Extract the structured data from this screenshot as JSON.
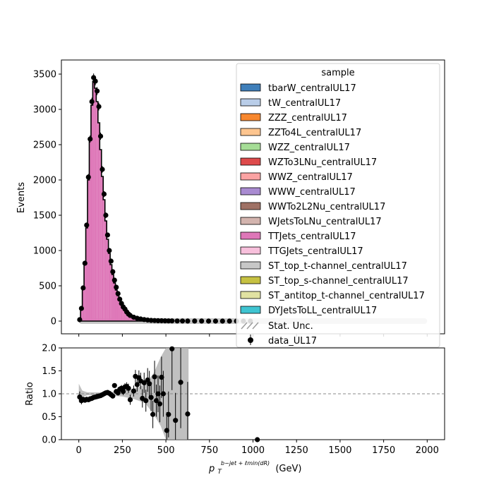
{
  "chart_data": [
    {
      "type": "bar",
      "panel": "main",
      "ylabel": "Events",
      "xlim": [
        -100,
        2100
      ],
      "ylim": [
        -180,
        3700
      ],
      "xticks": [
        0,
        250,
        500,
        750,
        1000,
        1250,
        1500,
        1750,
        2000
      ],
      "yticks": [
        0,
        500,
        1000,
        1500,
        2000,
        2500,
        3000,
        3500
      ],
      "stack_color": "#de77b8",
      "data_color": "#000000",
      "unc_color": "#c8c8c8",
      "bin_width": 10,
      "mc_counts": [
        20,
        180,
        480,
        820,
        1320,
        2000,
        2560,
        3060,
        3400,
        3300,
        3110,
        2810,
        2430,
        2050,
        1720,
        1420,
        1160,
        960,
        800,
        660,
        540,
        440,
        360,
        290,
        235,
        190,
        155,
        125,
        100,
        82,
        66,
        54,
        44,
        36,
        29,
        24,
        19,
        15,
        12,
        10,
        8,
        6,
        5,
        4,
        3
      ],
      "data_points": [
        {
          "x": 5,
          "y": 20
        },
        {
          "x": 15,
          "y": 180
        },
        {
          "x": 25,
          "y": 470
        },
        {
          "x": 35,
          "y": 820
        },
        {
          "x": 45,
          "y": 1360
        },
        {
          "x": 55,
          "y": 2040
        },
        {
          "x": 65,
          "y": 2580
        },
        {
          "x": 75,
          "y": 3110
        },
        {
          "x": 85,
          "y": 3450
        },
        {
          "x": 95,
          "y": 3400
        },
        {
          "x": 105,
          "y": 3260
        },
        {
          "x": 115,
          "y": 3040
        },
        {
          "x": 125,
          "y": 2620
        },
        {
          "x": 135,
          "y": 2150
        },
        {
          "x": 145,
          "y": 1800
        },
        {
          "x": 155,
          "y": 1500
        },
        {
          "x": 165,
          "y": 1220
        },
        {
          "x": 175,
          "y": 1000
        },
        {
          "x": 185,
          "y": 850
        },
        {
          "x": 195,
          "y": 700
        },
        {
          "x": 205,
          "y": 580
        },
        {
          "x": 215,
          "y": 480
        },
        {
          "x": 225,
          "y": 390
        },
        {
          "x": 235,
          "y": 310
        },
        {
          "x": 245,
          "y": 250
        },
        {
          "x": 255,
          "y": 200
        },
        {
          "x": 265,
          "y": 170
        },
        {
          "x": 275,
          "y": 130
        },
        {
          "x": 285,
          "y": 100
        },
        {
          "x": 295,
          "y": 80
        },
        {
          "x": 315,
          "y": 55
        },
        {
          "x": 335,
          "y": 40
        },
        {
          "x": 355,
          "y": 30
        },
        {
          "x": 375,
          "y": 22
        },
        {
          "x": 395,
          "y": 15
        },
        {
          "x": 415,
          "y": 10
        },
        {
          "x": 435,
          "y": 8
        },
        {
          "x": 455,
          "y": 6
        },
        {
          "x": 475,
          "y": 5
        },
        {
          "x": 495,
          "y": 4
        },
        {
          "x": 515,
          "y": 3
        },
        {
          "x": 535,
          "y": 3
        },
        {
          "x": 565,
          "y": 2
        },
        {
          "x": 595,
          "y": 2
        },
        {
          "x": 625,
          "y": 1
        },
        {
          "x": 665,
          "y": 1
        },
        {
          "x": 705,
          "y": 1
        },
        {
          "x": 745,
          "y": 0
        },
        {
          "x": 785,
          "y": 0
        },
        {
          "x": 825,
          "y": 0
        },
        {
          "x": 865,
          "y": 0
        },
        {
          "x": 905,
          "y": 0
        },
        {
          "x": 945,
          "y": 0
        },
        {
          "x": 985,
          "y": 0
        }
      ],
      "legend": {
        "title": "sample",
        "placement": "upper-right",
        "entries": [
          {
            "label": "tbarW_centralUL17",
            "color": "#3f7fba"
          },
          {
            "label": "tW_centralUL17",
            "color": "#b9cde8"
          },
          {
            "label": "ZZZ_centralUL17",
            "color": "#f7872e"
          },
          {
            "label": "ZZTo4L_centralUL17",
            "color": "#fdc58f"
          },
          {
            "label": "WZZ_centralUL17",
            "color": "#a5dd96"
          },
          {
            "label": "WZTo3LNu_centralUL17",
            "color": "#de4a4b"
          },
          {
            "label": "WWZ_centralUL17",
            "color": "#fba3a3"
          },
          {
            "label": "WWW_centralUL17",
            "color": "#a98bd1"
          },
          {
            "label": "WWTo2L2Nu_centralUL17",
            "color": "#9f7165"
          },
          {
            "label": "WJetsToLNu_centralUL17",
            "color": "#d3b4ae"
          },
          {
            "label": "TTJets_centralUL17",
            "color": "#de77b8"
          },
          {
            "label": "TTGJets_centralUL17",
            "color": "#f8c0dc"
          },
          {
            "label": "ST_top_t-channel_centralUL17",
            "color": "#c7c7c7"
          },
          {
            "label": "ST_top_s-channel_centralUL17",
            "color": "#c6c142"
          },
          {
            "label": "ST_antitop_t-channel_centralUL17",
            "color": "#e1e2a2"
          },
          {
            "label": "DYJetsToLL_centralUL17",
            "color": "#3fc4d1"
          }
        ],
        "unc_label": "Stat. Unc.",
        "data_label": "data_UL17"
      }
    },
    {
      "type": "scatter",
      "panel": "ratio",
      "ylabel": "Ratio",
      "xlabel_main": "p",
      "xlabel_sub": "T",
      "xlabel_sup": "b−jet + ℓmin(dR)",
      "xlabel_unit": "(GeV)",
      "xlim": [
        -100,
        2100
      ],
      "ylim": [
        0,
        2
      ],
      "xticks": [
        0,
        250,
        500,
        750,
        1000,
        1250,
        1500,
        1750,
        2000
      ],
      "yticks": [
        "0.0",
        "0.5",
        "1.0",
        "1.5",
        "2.0"
      ],
      "reference_line": 1.0,
      "points": [
        {
          "x": 5,
          "y": 0.93,
          "err": 0.12
        },
        {
          "x": 15,
          "y": 0.85,
          "err": 0.08
        },
        {
          "x": 25,
          "y": 0.88,
          "err": 0.05
        },
        {
          "x": 35,
          "y": 0.86,
          "err": 0.04
        },
        {
          "x": 45,
          "y": 0.88,
          "err": 0.03
        },
        {
          "x": 55,
          "y": 0.87,
          "err": 0.03
        },
        {
          "x": 65,
          "y": 0.89,
          "err": 0.03
        },
        {
          "x": 75,
          "y": 0.9,
          "err": 0.02
        },
        {
          "x": 85,
          "y": 0.92,
          "err": 0.02
        },
        {
          "x": 95,
          "y": 0.93,
          "err": 0.02
        },
        {
          "x": 105,
          "y": 0.94,
          "err": 0.02
        },
        {
          "x": 115,
          "y": 0.95,
          "err": 0.02
        },
        {
          "x": 125,
          "y": 0.96,
          "err": 0.02
        },
        {
          "x": 135,
          "y": 0.98,
          "err": 0.02
        },
        {
          "x": 145,
          "y": 1.0,
          "err": 0.03
        },
        {
          "x": 155,
          "y": 1.02,
          "err": 0.03
        },
        {
          "x": 165,
          "y": 1.03,
          "err": 0.03
        },
        {
          "x": 175,
          "y": 1.01,
          "err": 0.03
        },
        {
          "x": 185,
          "y": 0.98,
          "err": 0.04
        },
        {
          "x": 195,
          "y": 0.95,
          "err": 0.04
        },
        {
          "x": 205,
          "y": 1.18,
          "err": 0.05
        },
        {
          "x": 215,
          "y": 1.05,
          "err": 0.05
        },
        {
          "x": 225,
          "y": 1.02,
          "err": 0.06
        },
        {
          "x": 235,
          "y": 1.1,
          "err": 0.06
        },
        {
          "x": 245,
          "y": 1.12,
          "err": 0.07
        },
        {
          "x": 255,
          "y": 1.05,
          "err": 0.08
        },
        {
          "x": 265,
          "y": 1.15,
          "err": 0.08
        },
        {
          "x": 275,
          "y": 1.16,
          "err": 0.09
        },
        {
          "x": 285,
          "y": 1.12,
          "err": 0.1
        },
        {
          "x": 295,
          "y": 0.87,
          "err": 0.11
        },
        {
          "x": 315,
          "y": 1.06,
          "err": 0.12
        },
        {
          "x": 325,
          "y": 1.38,
          "err": 0.14
        },
        {
          "x": 335,
          "y": 1.2,
          "err": 0.15
        },
        {
          "x": 345,
          "y": 1.35,
          "err": 0.16
        },
        {
          "x": 355,
          "y": 1.28,
          "err": 0.18
        },
        {
          "x": 365,
          "y": 0.9,
          "err": 0.2
        },
        {
          "x": 375,
          "y": 1.24,
          "err": 0.22
        },
        {
          "x": 385,
          "y": 0.85,
          "err": 0.24
        },
        {
          "x": 395,
          "y": 1.3,
          "err": 0.26
        },
        {
          "x": 405,
          "y": 1.22,
          "err": 0.28
        },
        {
          "x": 415,
          "y": 0.92,
          "err": 0.3
        },
        {
          "x": 425,
          "y": 0.55,
          "err": 0.3
        },
        {
          "x": 435,
          "y": 1.37,
          "err": 0.35
        },
        {
          "x": 445,
          "y": 0.85,
          "err": 0.35
        },
        {
          "x": 455,
          "y": 1.0,
          "err": 0.4
        },
        {
          "x": 465,
          "y": 0.78,
          "err": 0.4
        },
        {
          "x": 475,
          "y": 1.36,
          "err": 0.45
        },
        {
          "x": 485,
          "y": 1.0,
          "err": 0.5
        },
        {
          "x": 505,
          "y": 0.2,
          "err": 0.4
        },
        {
          "x": 515,
          "y": 0.55,
          "err": 0.5
        },
        {
          "x": 535,
          "y": 1.98,
          "err": 0.9
        },
        {
          "x": 555,
          "y": 0.42,
          "err": 0.6
        },
        {
          "x": 585,
          "y": 1.25,
          "err": 1.0
        },
        {
          "x": 625,
          "y": 0.56,
          "err": 0.7
        },
        {
          "x": 1025,
          "y": 0.0,
          "err": 0.0
        }
      ],
      "unc_band": [
        {
          "x": 0,
          "lo": 0.82,
          "hi": 1.22
        },
        {
          "x": 20,
          "lo": 0.93,
          "hi": 1.07
        },
        {
          "x": 50,
          "lo": 0.97,
          "hi": 1.03
        },
        {
          "x": 150,
          "lo": 0.97,
          "hi": 1.03
        },
        {
          "x": 250,
          "lo": 0.94,
          "hi": 1.06
        },
        {
          "x": 320,
          "lo": 0.88,
          "hi": 1.12
        },
        {
          "x": 380,
          "lo": 0.8,
          "hi": 1.2
        },
        {
          "x": 430,
          "lo": 0.55,
          "hi": 1.45
        },
        {
          "x": 470,
          "lo": 0.3,
          "hi": 1.8
        },
        {
          "x": 500,
          "lo": 0.0,
          "hi": 2.0
        },
        {
          "x": 630,
          "lo": 0.0,
          "hi": 2.0
        }
      ]
    }
  ]
}
